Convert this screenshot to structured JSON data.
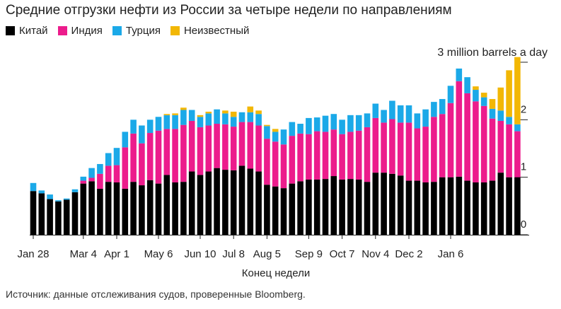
{
  "title": "Средние отгрузки нефти из России за четыре недели по направлениям",
  "source": "Источник: данные отслеживания судов, проверенные Bloomberg.",
  "legend": [
    {
      "name": "Китай",
      "color": "#000000"
    },
    {
      "name": "Индия",
      "color": "#ec1c8c"
    },
    {
      "name": "Турция",
      "color": "#1ba9e8"
    },
    {
      "name": "Неизвестный",
      "color": "#f2b705"
    }
  ],
  "chart_data": {
    "type": "bar",
    "stacked": true,
    "xlabel": "Конец недели",
    "ylabel": "",
    "ylim": [
      0,
      3
    ],
    "yticks": [
      0,
      1,
      2,
      3
    ],
    "ytick_labels": [
      "0",
      "1",
      "2",
      "3 million barrels a day"
    ],
    "xtick_labels": [
      "Jan 28",
      "Mar 4",
      "Apr 1",
      "May 6",
      "Jun 10",
      "Jul 8",
      "Aug 5",
      "Sep 9",
      "Oct 7",
      "Nov 4",
      "Dec 2",
      "Jan 6"
    ],
    "xtick_positions": [
      0,
      6,
      10,
      15,
      20,
      24,
      28,
      33,
      37,
      41,
      45,
      50
    ],
    "series": [
      {
        "name": "Китай",
        "color": "#000000",
        "values": [
          0.76,
          0.72,
          0.62,
          0.58,
          0.61,
          0.74,
          0.89,
          0.93,
          0.8,
          0.92,
          0.91,
          0.8,
          0.92,
          0.86,
          0.95,
          0.89,
          1.04,
          0.91,
          0.92,
          1.1,
          1.04,
          1.1,
          1.16,
          1.13,
          1.12,
          1.2,
          1.15,
          1.1,
          0.87,
          0.84,
          0.81,
          0.89,
          0.93,
          0.96,
          0.96,
          0.97,
          1.02,
          0.96,
          0.97,
          0.96,
          0.92,
          1.08,
          1.08,
          1.06,
          1.03,
          0.94,
          0.94,
          0.91,
          0.92,
          1.0,
          1.0,
          1.01,
          0.94,
          0.91,
          0.91,
          0.94,
          1.08,
          1.0,
          1.0
        ]
      },
      {
        "name": "Индия",
        "color": "#ec1c8c",
        "values": [
          0,
          0,
          0,
          0,
          0,
          0,
          0.05,
          0.06,
          0.26,
          0.28,
          0.3,
          0.72,
          0.84,
          0.73,
          0.82,
          0.92,
          0.8,
          0.93,
          0.99,
          0.88,
          0.83,
          0.8,
          0.77,
          0.79,
          0.76,
          0.76,
          0.81,
          0.8,
          0.8,
          0.78,
          0.76,
          0.83,
          0.83,
          0.79,
          0.84,
          0.82,
          0.81,
          0.79,
          0.82,
          0.85,
          0.95,
          0.95,
          0.87,
          0.95,
          0.92,
          1.01,
          0.91,
          0.97,
          1.13,
          1.1,
          1.29,
          1.66,
          1.52,
          1.41,
          1.33,
          1.08,
          0.9,
          0.92,
          0.8
        ]
      },
      {
        "name": "Турция",
        "color": "#1ba9e8",
        "values": [
          0.14,
          0.05,
          0.08,
          0.02,
          0.02,
          0.05,
          0.07,
          0.17,
          0.17,
          0.22,
          0.3,
          0.27,
          0.24,
          0.31,
          0.23,
          0.24,
          0.24,
          0.24,
          0.26,
          0.19,
          0.18,
          0.21,
          0.25,
          0.19,
          0.17,
          0.17,
          0.17,
          0.2,
          0.22,
          0.17,
          0.26,
          0.24,
          0.17,
          0.28,
          0.24,
          0.28,
          0.27,
          0.25,
          0.29,
          0.27,
          0.24,
          0.25,
          0.22,
          0.32,
          0.3,
          0.3,
          0.26,
          0.3,
          0.26,
          0.26,
          0.3,
          0.22,
          0.28,
          0.2,
          0.15,
          0.17,
          0.18,
          0.13,
          0.12
        ]
      },
      {
        "name": "Неизвестный",
        "color": "#f2b705",
        "values": [
          0,
          0,
          0,
          0,
          0,
          0,
          0,
          0,
          0,
          0,
          0,
          0,
          0,
          0,
          0,
          0,
          0.02,
          0.03,
          0.04,
          0,
          0.03,
          0.03,
          0,
          0.05,
          0.09,
          0,
          0.1,
          0.06,
          0.02,
          0.05,
          0,
          0,
          0,
          0,
          0,
          0,
          0,
          0,
          0,
          0,
          0,
          0,
          0,
          0,
          0,
          0,
          0,
          0,
          0,
          0,
          0,
          0,
          0,
          0.06,
          0.08,
          0.17,
          0.4,
          0.81,
          1.17
        ]
      }
    ]
  }
}
